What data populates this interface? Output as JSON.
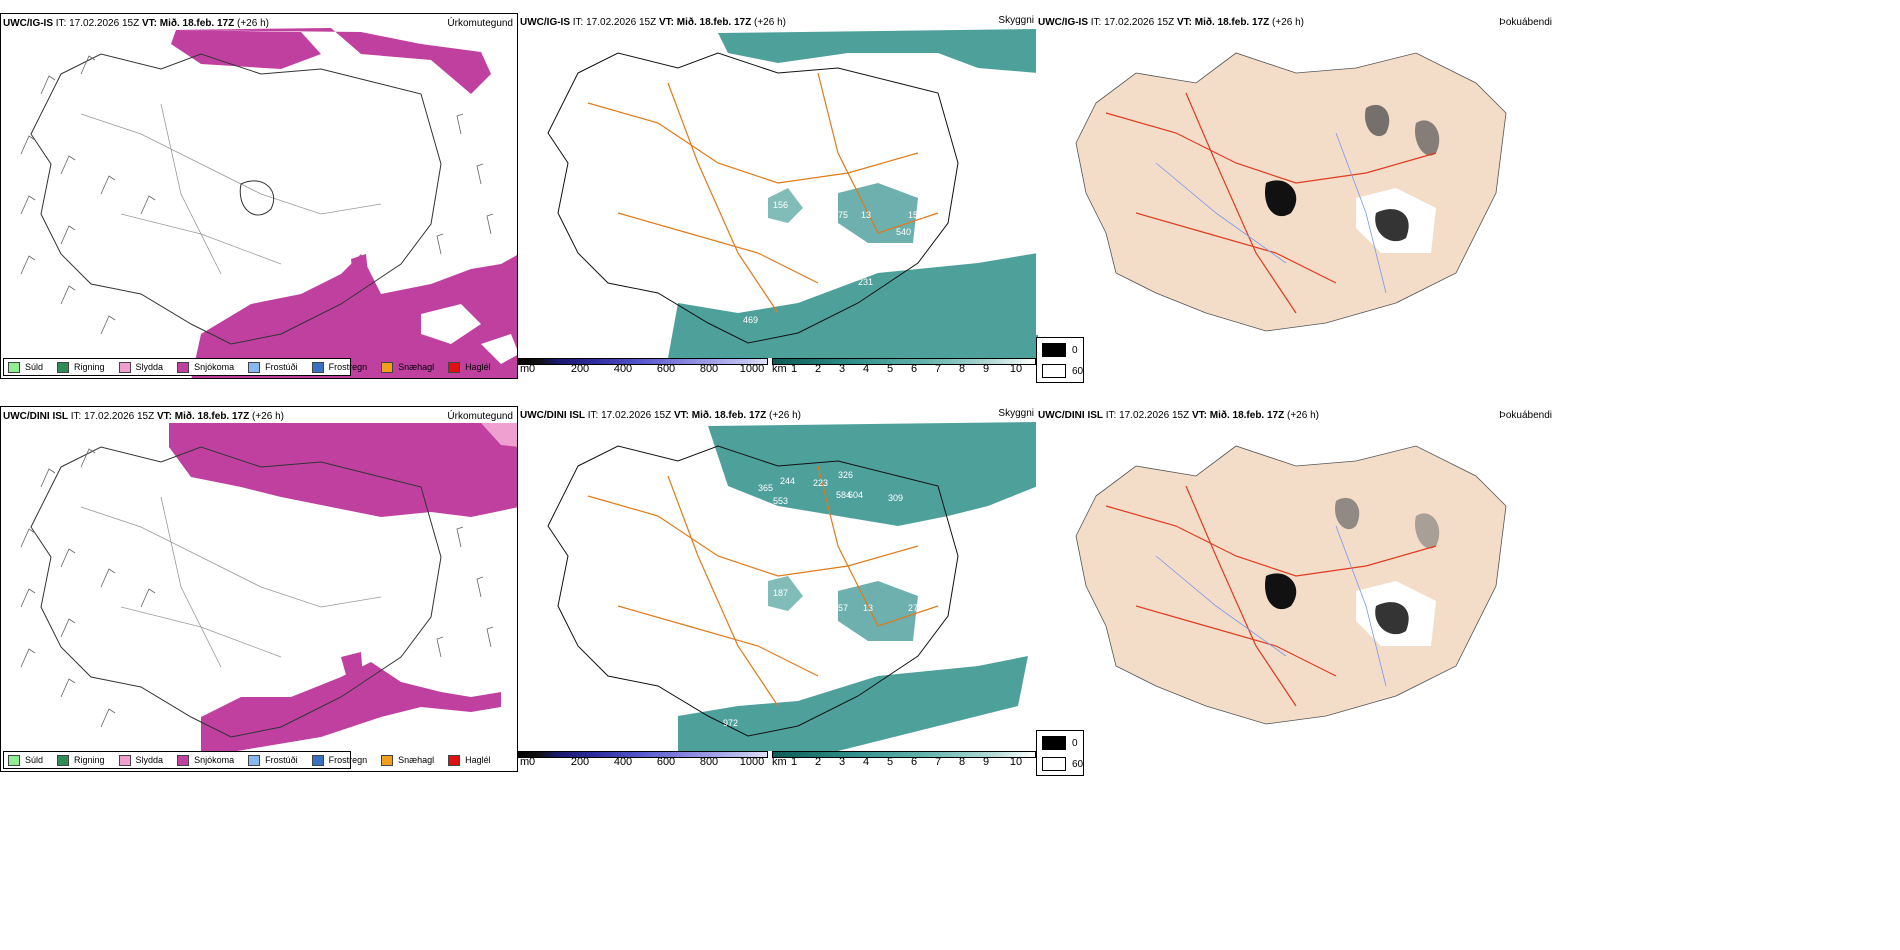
{
  "rows": [
    {
      "model": "UWC/IG-IS",
      "it_label": "IT:",
      "it_value": "17.02.2026 15Z",
      "vt_label": "VT:",
      "vt_value": "Mið. 18.feb. 17Z",
      "lead": "(+26 h)"
    },
    {
      "model": "UWC/DINI ISL",
      "it_label": "IT:",
      "it_value": "17.02.2026 15Z",
      "vt_label": "VT:",
      "vt_value": "Mið. 18.feb. 17Z",
      "lead": "(+26 h)"
    }
  ],
  "panel_titles": {
    "precip": "Úrkomutegund",
    "visibility": "Skyggni",
    "fog": "Þokuábendi"
  },
  "precip_legend": [
    {
      "label": "Súld",
      "color": "#90ee90"
    },
    {
      "label": "Rigning",
      "color": "#2e8b57"
    },
    {
      "label": "Slydda",
      "color": "#f0a0d0"
    },
    {
      "label": "Snjókoma",
      "color": "#c040a0"
    },
    {
      "label": "Frostúði",
      "color": "#87b8f0"
    },
    {
      "label": "Frostregn",
      "color": "#3a70c0"
    },
    {
      "label": "Snæhagl",
      "color": "#f0a020"
    },
    {
      "label": "Haglél",
      "color": "#e01010"
    }
  ],
  "colorbar_height": {
    "unit": "m",
    "ticks": [
      "0",
      "200",
      "400",
      "600",
      "800",
      "1000"
    ]
  },
  "colorbar_visibility": {
    "unit": "km",
    "ticks": [
      "1",
      "2",
      "3",
      "4",
      "5",
      "6",
      "7",
      "8",
      "9",
      "10"
    ]
  },
  "fog_legend": {
    "high": "0",
    "low": "60"
  },
  "vis_labels_top": [
    "156",
    "30",
    "175",
    "13",
    "152",
    "540",
    "30",
    "231",
    "469"
  ],
  "vis_labels_bottom": [
    "365",
    "244",
    "223",
    "326",
    "553",
    "584",
    "604",
    "309",
    "187",
    "132",
    "657",
    "13",
    "27",
    "972"
  ],
  "colors": {
    "snow": "#c040a0",
    "sleet": "#f0a0d0",
    "fog_teal": "#2f8f8a",
    "road_orange": "#e07a1a",
    "road_red": "#e03a20",
    "land_beige": "#f3ddc8",
    "river_blue": "#7a96ee"
  }
}
